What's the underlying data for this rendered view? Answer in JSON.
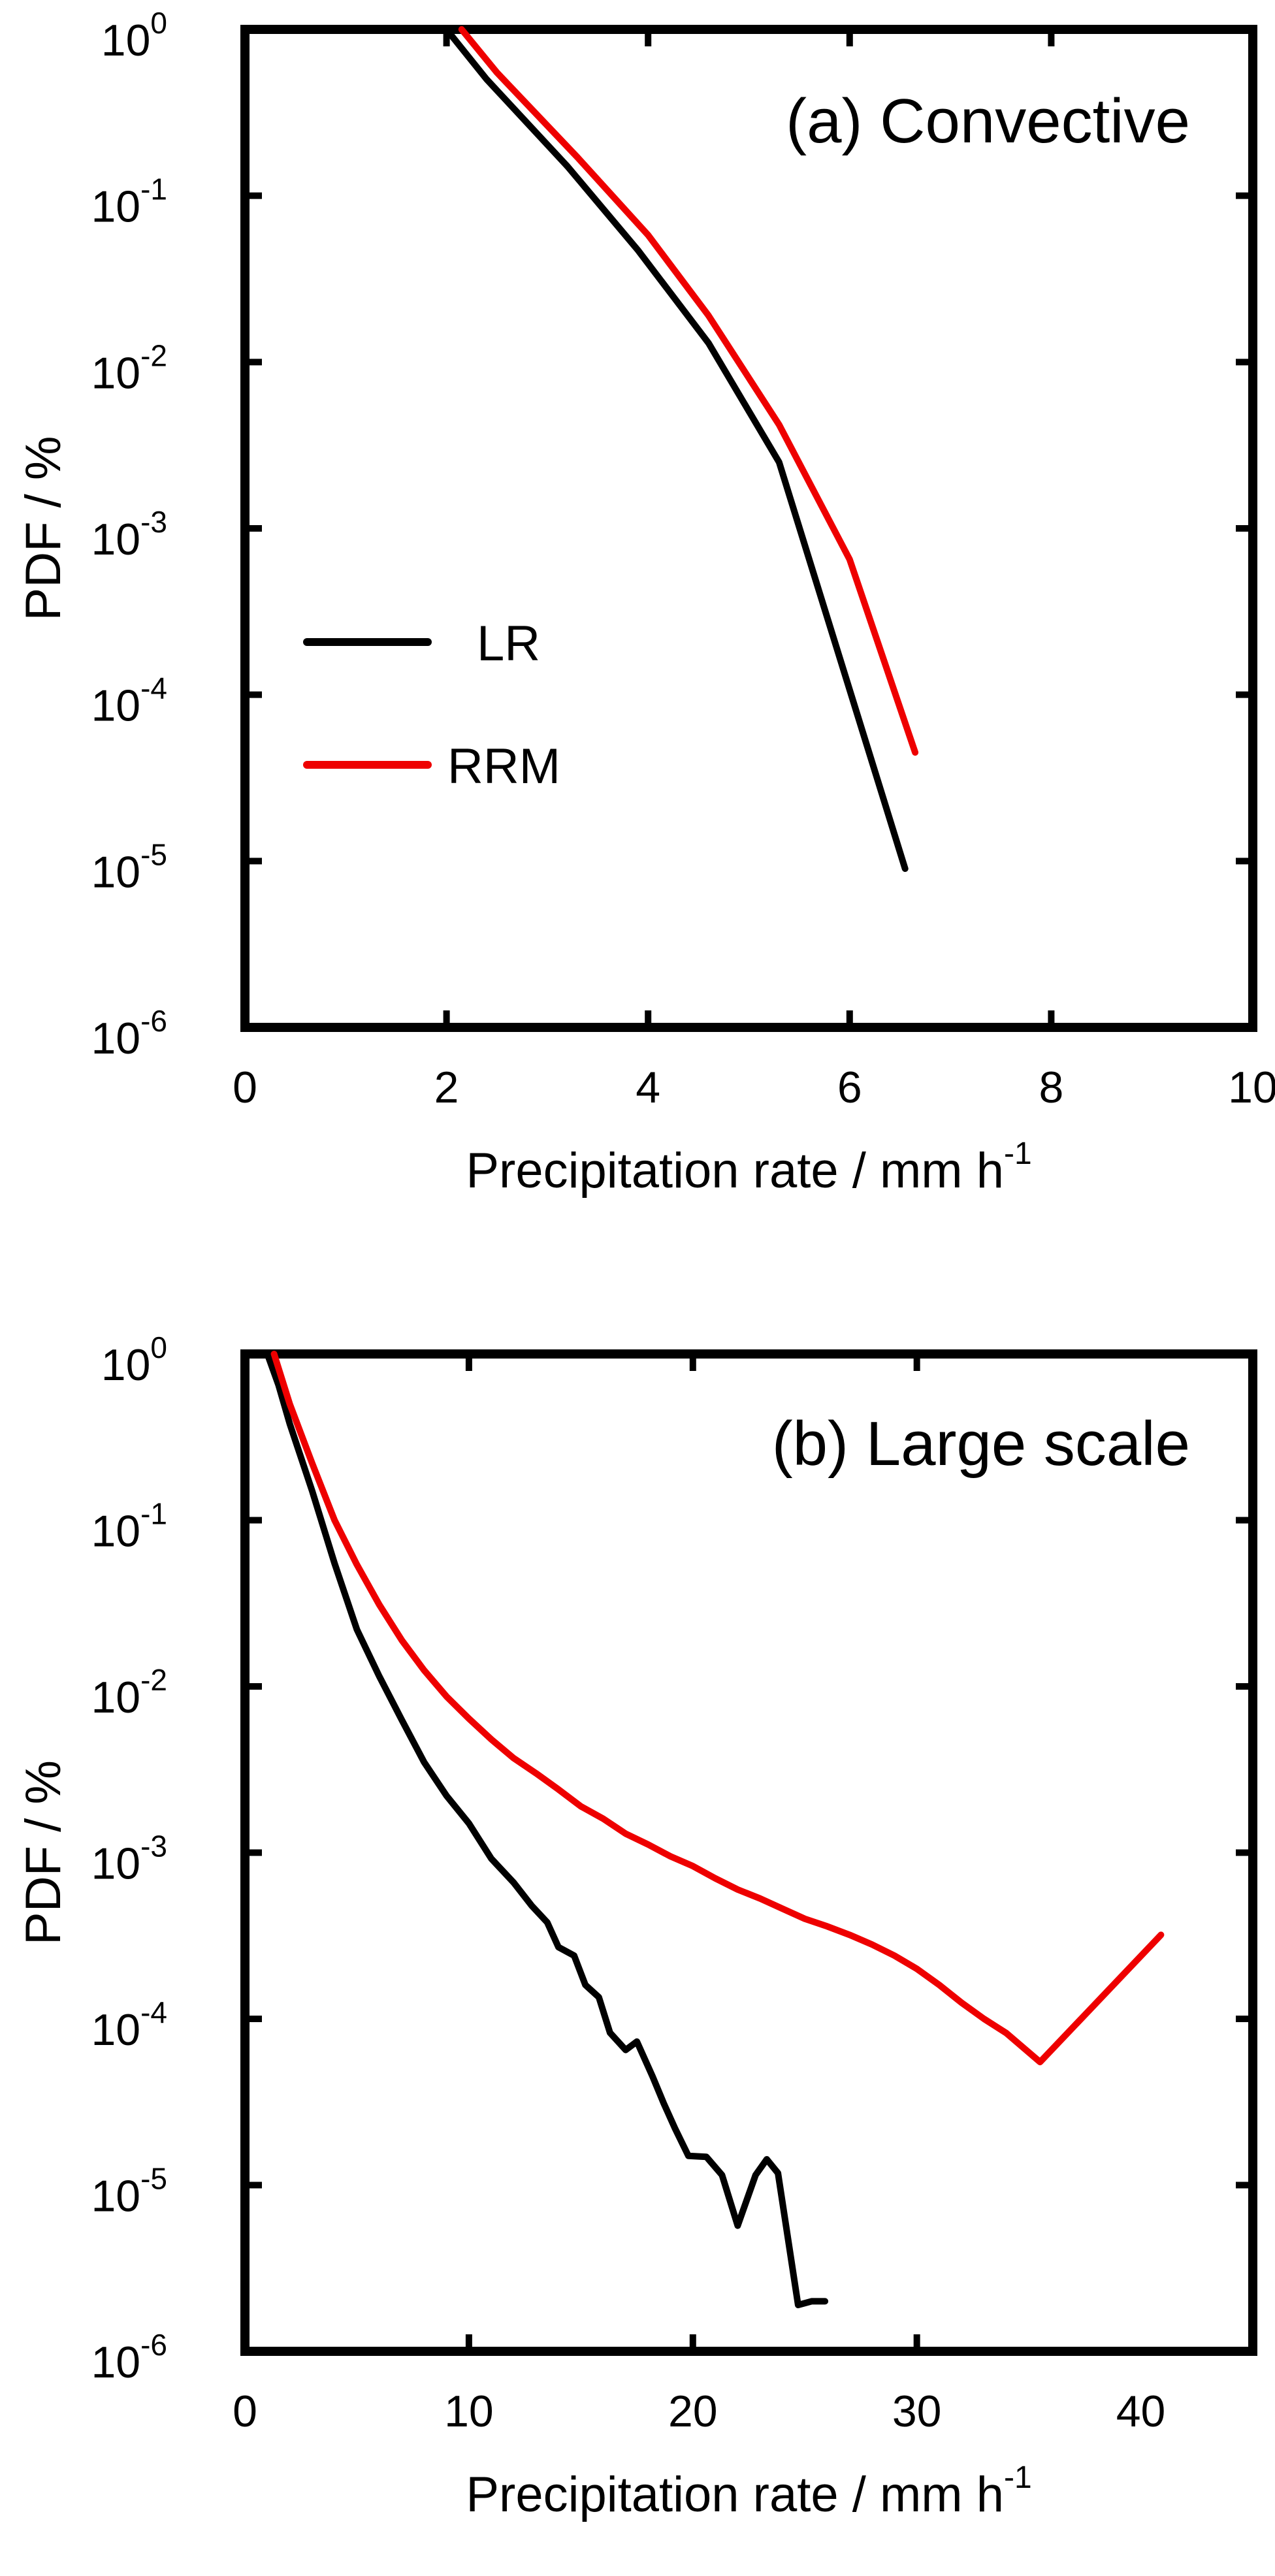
{
  "chart_data": [
    {
      "type": "line",
      "title": "(a) Convective",
      "xlabel": "Precipitation rate / mm h",
      "xlabel_sup": "-1",
      "ylabel": "PDF / %",
      "xlim": [
        0,
        10
      ],
      "ylim": [
        1e-06,
        1
      ],
      "yscale": "log",
      "xticks": [
        0,
        2,
        4,
        6,
        8,
        10
      ],
      "xtick_labels": [
        "0",
        "2",
        "4",
        "6",
        "8",
        "10"
      ],
      "yticks": [
        {
          "value": 1,
          "base": "10",
          "exp": "0"
        },
        {
          "value": 0.1,
          "base": "10",
          "exp": "-1"
        },
        {
          "value": 0.01,
          "base": "10",
          "exp": "-2"
        },
        {
          "value": 0.001,
          "base": "10",
          "exp": "-3"
        },
        {
          "value": 0.0001,
          "base": "10",
          "exp": "-4"
        },
        {
          "value": 1e-05,
          "base": "10",
          "exp": "-5"
        },
        {
          "value": 1e-06,
          "base": "10",
          "exp": "-6"
        }
      ],
      "grid": false,
      "legend": {
        "placement": "left-middle",
        "entries": [
          {
            "name": "LR",
            "color": "#000000"
          },
          {
            "name": "RRM",
            "color": "#ee0000"
          }
        ]
      },
      "series": [
        {
          "name": "LR",
          "color": "#000000",
          "x": [
            2.0,
            2.4,
            3.2,
            3.9,
            4.6,
            5.3,
            6.55
          ],
          "y": [
            1.0,
            0.5,
            0.15,
            0.047,
            0.013,
            0.0025,
            9e-06
          ]
        },
        {
          "name": "RRM",
          "color": "#ee0000",
          "x": [
            2.15,
            2.5,
            3.3,
            4.0,
            4.6,
            5.3,
            6.0,
            6.65
          ],
          "y": [
            1.0,
            0.55,
            0.17,
            0.058,
            0.019,
            0.0042,
            0.00065,
            4.5e-05
          ]
        }
      ]
    },
    {
      "type": "line",
      "title": "(b) Large scale",
      "xlabel": "Precipitation rate / mm h",
      "xlabel_sup": "-1",
      "ylabel": "PDF / %",
      "xlim": [
        0,
        45
      ],
      "ylim": [
        1e-06,
        1
      ],
      "yscale": "log",
      "xticks": [
        0,
        10,
        20,
        30,
        40
      ],
      "xtick_labels": [
        "0",
        "10",
        "20",
        "30",
        "40"
      ],
      "yticks": [
        {
          "value": 1,
          "base": "10",
          "exp": "0"
        },
        {
          "value": 0.1,
          "base": "10",
          "exp": "-1"
        },
        {
          "value": 0.01,
          "base": "10",
          "exp": "-2"
        },
        {
          "value": 0.001,
          "base": "10",
          "exp": "-3"
        },
        {
          "value": 0.0001,
          "base": "10",
          "exp": "-4"
        },
        {
          "value": 1e-05,
          "base": "10",
          "exp": "-5"
        },
        {
          "value": 1e-06,
          "base": "10",
          "exp": "-6"
        }
      ],
      "grid": false,
      "series": [
        {
          "name": "LR",
          "color": "#000000",
          "x": [
            1.0,
            1.5,
            2.0,
            3.0,
            4.0,
            5.0,
            6.0,
            7.0,
            8.0,
            9.0,
            10.0,
            11.0,
            12.0,
            12.8,
            13.5,
            14.0,
            14.7,
            15.2,
            15.8,
            16.3,
            17.0,
            17.5,
            18.2,
            18.7,
            19.2,
            19.8,
            20.6,
            21.3,
            22.0,
            22.8,
            23.3,
            23.8,
            24.7,
            25.3,
            25.9
          ],
          "y": [
            1.0,
            0.65,
            0.38,
            0.15,
            0.055,
            0.022,
            0.0115,
            0.0063,
            0.0035,
            0.0022,
            0.0015,
            0.00092,
            0.00066,
            0.00048,
            0.00038,
            0.00027,
            0.00024,
            0.00016,
            0.000135,
            8.25e-05,
            6.5e-05,
            7.3e-05,
            4.5e-05,
            3.1e-05,
            2.2e-05,
            1.5e-05,
            1.48e-05,
            1.15e-05,
            5.7e-06,
            1.15e-05,
            1.43e-05,
            1.18e-05,
            1.9e-06,
            2e-06,
            2e-06
          ]
        },
        {
          "name": "RRM",
          "color": "#ee0000",
          "x": [
            1.3,
            2.0,
            3.0,
            4.0,
            5.0,
            6.0,
            7.0,
            8.0,
            9.0,
            10.0,
            11.0,
            12.0,
            13.0,
            14.0,
            15.0,
            16.0,
            17.0,
            18.0,
            19.0,
            20.0,
            21.0,
            22.0,
            23.0,
            24.0,
            25.0,
            26.0,
            27.0,
            28.0,
            29.0,
            30.0,
            31.0,
            32.0,
            33.0,
            34.0,
            35.5,
            40.9
          ],
          "y": [
            1.0,
            0.5,
            0.22,
            0.1,
            0.054,
            0.031,
            0.019,
            0.0125,
            0.0087,
            0.0064,
            0.0048,
            0.0037,
            0.003,
            0.0024,
            0.0019,
            0.0016,
            0.0013,
            0.00112,
            0.00095,
            0.00083,
            0.0007,
            0.0006,
            0.00053,
            0.00046,
            0.0004,
            0.00036,
            0.00032,
            0.00028,
            0.00024,
            0.0002,
            0.00016,
            0.000125,
            0.0001,
            8.2e-05,
            5.5e-05,
            0.00032
          ]
        }
      ]
    }
  ]
}
